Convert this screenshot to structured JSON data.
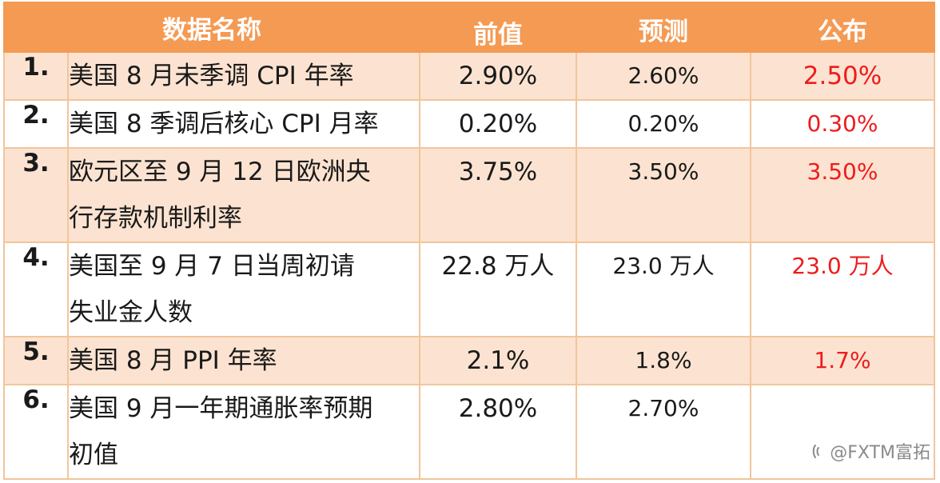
{
  "header": {
    "name": "数据名称",
    "previous": "前值",
    "forecast": "预测",
    "actual": "公布"
  },
  "rows": [
    {
      "index": "1.",
      "name_lines": [
        "美国 8 月未季调 CPI 年率"
      ],
      "previous": "2.90%",
      "forecast": "2.60%",
      "actual": "2.50%"
    },
    {
      "index": "2.",
      "name_lines": [
        "美国 8 季调后核心 CPI 月率"
      ],
      "previous": "0.20%",
      "forecast": "0.20%",
      "actual": "0.30%"
    },
    {
      "index": "3.",
      "name_lines": [
        "欧元区至 9 月 12 日欧洲央",
        "行存款机制利率"
      ],
      "previous": "3.75%",
      "forecast": "3.50%",
      "actual": "3.50%"
    },
    {
      "index": "4.",
      "name_lines": [
        "美国至 9 月 7 日当周初请",
        "失业金人数"
      ],
      "previous": "22.8 万人",
      "forecast": "23.0 万人",
      "actual": "23.0 万人"
    },
    {
      "index": "5.",
      "name_lines": [
        "美国 8 月 PPI 年率"
      ],
      "previous": "2.1%",
      "forecast": "1.8%",
      "actual": "1.7%"
    },
    {
      "index": "6.",
      "name_lines": [
        "美国 9 月一年期通胀率预期",
        "初值"
      ],
      "previous": "2.80%",
      "forecast": "2.70%",
      "actual": ""
    }
  ],
  "watermark": {
    "text": "@FXTM富拓",
    "icon": "weibo-logo-icon"
  },
  "colors": {
    "header_bg": "#f59a53",
    "shade_row": "#fce3d1",
    "border": "#f2c59b",
    "actual_text": "#ee1c1c"
  }
}
